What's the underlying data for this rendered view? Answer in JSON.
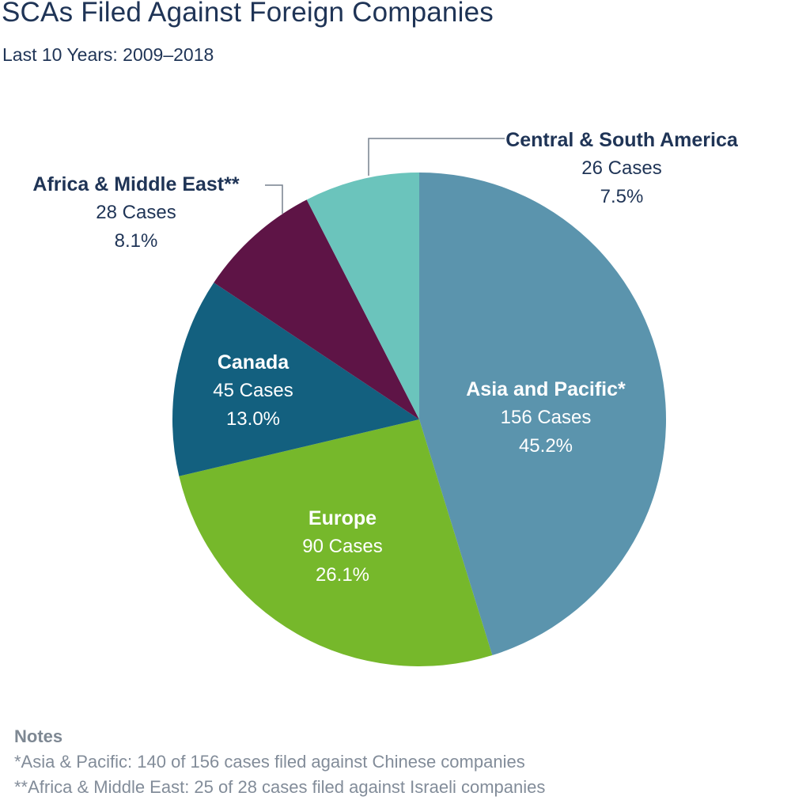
{
  "title": "SCAs Filed Against Foreign Companies",
  "subtitle": "Last 10 Years: 2009–2018",
  "chart_data": {
    "type": "pie",
    "title": "SCAs Filed Against Foreign Companies",
    "subtitle": "Last 10 Years: 2009–2018",
    "unit": "Cases",
    "start_angle_deg": 0,
    "direction": "clockwise",
    "legend_position": "labels-on-and-around-pie",
    "slices": [
      {
        "id": "asia-and-pacific",
        "label": "Asia and Pacific*",
        "cases": 156,
        "pct": 45.2,
        "cases_label": "156 Cases",
        "pct_label": "45.2%",
        "color": "#5B94AD",
        "label_placement": "inside"
      },
      {
        "id": "europe",
        "label": "Europe",
        "cases": 90,
        "pct": 26.1,
        "cases_label": "90 Cases",
        "pct_label": "26.1%",
        "color": "#76B82B",
        "label_placement": "inside"
      },
      {
        "id": "canada",
        "label": "Canada",
        "cases": 45,
        "pct": 13.0,
        "cases_label": "45 Cases",
        "pct_label": "13.0%",
        "color": "#13607F",
        "label_placement": "inside"
      },
      {
        "id": "africa-middle-east",
        "label": "Africa & Middle East**",
        "cases": 28,
        "pct": 8.1,
        "cases_label": "28 Cases",
        "pct_label": "8.1%",
        "color": "#5E1446",
        "label_placement": "outside"
      },
      {
        "id": "central-south-america",
        "label": "Central & South America",
        "cases": 26,
        "pct": 7.5,
        "cases_label": "26 Cases",
        "pct_label": "7.5%",
        "color": "#6BC4BC",
        "label_placement": "outside"
      }
    ],
    "inside_label_color": "#FFFFFF",
    "outside_label_color": "#1F3456",
    "leader_line_color": "#77818E"
  },
  "notes": {
    "heading": "Notes",
    "lines": [
      "*Asia & Pacific: 140 of 156 cases filed against Chinese companies",
      "**Africa & Middle East: 25 of 28 cases filed against Israeli companies"
    ]
  },
  "colors": {
    "title": "#1F3456",
    "notes_text": "#828C99",
    "background": "#FFFFFF"
  }
}
